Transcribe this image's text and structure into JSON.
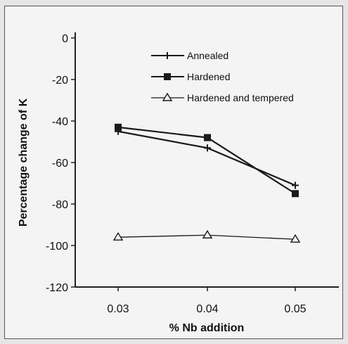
{
  "chart_data": {
    "type": "line",
    "title": "",
    "xlabel": "% Nb addition",
    "ylabel": "Percentage change of K",
    "categories": [
      "0.03",
      "0.04",
      "0.05"
    ],
    "ylim": [
      -120,
      0
    ],
    "yticks": [
      0,
      -20,
      -40,
      -60,
      -80,
      -100,
      -120
    ],
    "ytick_labels": [
      "0",
      "-20",
      "-40",
      "-60",
      "-80",
      "-100",
      "-120"
    ],
    "grid": false,
    "legend_position": "top-center",
    "series": [
      {
        "name": "Annealed",
        "values": [
          -45,
          -53,
          -71
        ],
        "marker": "plus",
        "color": "#1a1a1a"
      },
      {
        "name": "Hardened",
        "values": [
          -43,
          -48,
          -75
        ],
        "marker": "square",
        "color": "#1a1a1a"
      },
      {
        "name": "Hardened and tempered",
        "values": [
          -96,
          -95,
          -97
        ],
        "marker": "triangle",
        "color": "#1a1a1a"
      }
    ]
  }
}
